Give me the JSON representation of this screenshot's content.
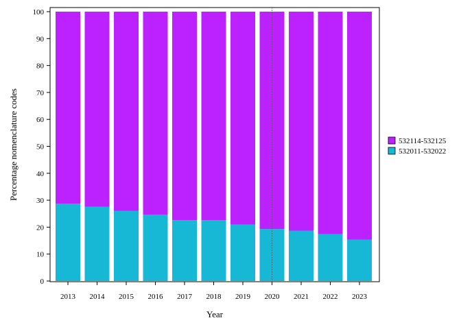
{
  "chart_data": {
    "type": "bar",
    "stacked": true,
    "title": "",
    "xlabel": "Year",
    "ylabel": "Percentage nomenclature codes",
    "ylim": [
      0,
      100
    ],
    "yticks": [
      0,
      10,
      20,
      30,
      40,
      50,
      60,
      70,
      80,
      90,
      100
    ],
    "grid": false,
    "legend_position": "right",
    "reference_line": {
      "x": "2020",
      "style": "dotted"
    },
    "categories": [
      "2013",
      "2014",
      "2015",
      "2016",
      "2017",
      "2018",
      "2019",
      "2020",
      "2021",
      "2022",
      "2023"
    ],
    "series": [
      {
        "name": "532011-532022",
        "color": "#17b8d6",
        "values": [
          28.7,
          27.6,
          26.0,
          24.6,
          22.6,
          22.6,
          21.0,
          19.3,
          18.7,
          17.4,
          15.4
        ]
      },
      {
        "name": "532114-532125",
        "color": "#bb22ff",
        "values": [
          71.3,
          72.4,
          74.0,
          75.4,
          77.4,
          77.4,
          79.0,
          80.7,
          81.3,
          82.6,
          84.6
        ]
      }
    ]
  }
}
